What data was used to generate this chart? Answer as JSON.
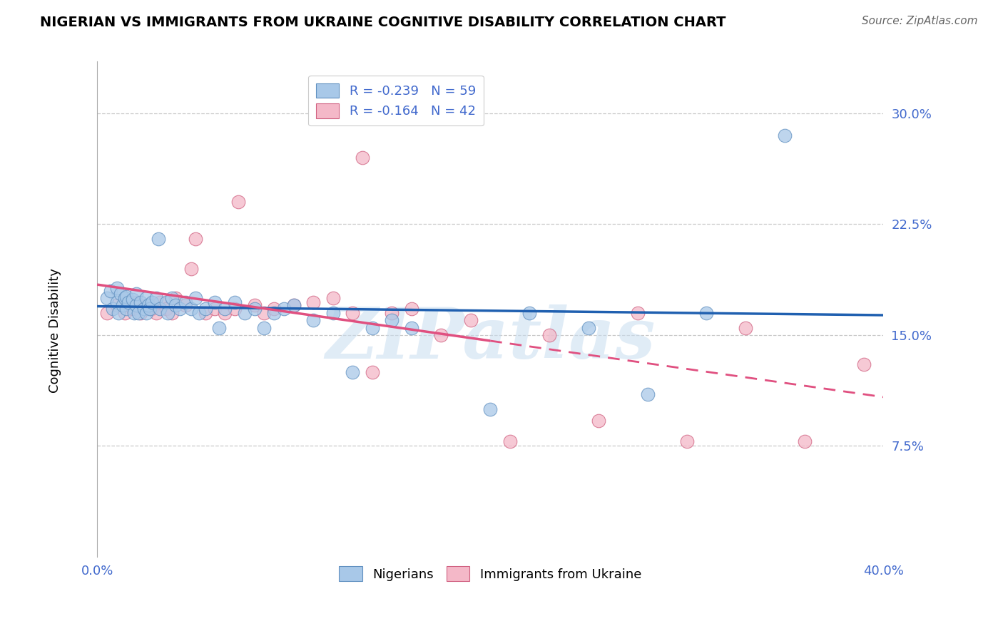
{
  "title": "NIGERIAN VS IMMIGRANTS FROM UKRAINE COGNITIVE DISABILITY CORRELATION CHART",
  "source": "Source: ZipAtlas.com",
  "ylabel": "Cognitive Disability",
  "ytick_labels": [
    "7.5%",
    "15.0%",
    "22.5%",
    "30.0%"
  ],
  "ytick_values": [
    0.075,
    0.15,
    0.225,
    0.3
  ],
  "xlim": [
    0.0,
    0.4
  ],
  "ylim": [
    0.0,
    0.335
  ],
  "legend_r1": "R = -0.239",
  "legend_n1": "N = 59",
  "legend_r2": "R = -0.164",
  "legend_n2": "N = 42",
  "color_blue": "#a8c8e8",
  "color_pink": "#f4b8c8",
  "color_blue_edge": "#6090c0",
  "color_pink_edge": "#d06080",
  "color_blue_line": "#2060b0",
  "color_pink_line": "#e05080",
  "color_accent": "#4169CD",
  "background_color": "#ffffff",
  "watermark": "ZIPatlas",
  "nigerians_x": [
    0.005,
    0.007,
    0.008,
    0.01,
    0.01,
    0.011,
    0.012,
    0.013,
    0.014,
    0.015,
    0.015,
    0.016,
    0.018,
    0.019,
    0.02,
    0.02,
    0.021,
    0.022,
    0.024,
    0.025,
    0.025,
    0.026,
    0.027,
    0.028,
    0.03,
    0.031,
    0.032,
    0.035,
    0.036,
    0.038,
    0.04,
    0.042,
    0.045,
    0.048,
    0.05,
    0.052,
    0.055,
    0.06,
    0.062,
    0.065,
    0.07,
    0.075,
    0.08,
    0.085,
    0.09,
    0.095,
    0.1,
    0.11,
    0.12,
    0.13,
    0.14,
    0.15,
    0.16,
    0.2,
    0.22,
    0.25,
    0.28,
    0.31,
    0.35
  ],
  "nigerians_y": [
    0.175,
    0.18,
    0.168,
    0.172,
    0.182,
    0.165,
    0.178,
    0.17,
    0.175,
    0.168,
    0.176,
    0.172,
    0.174,
    0.165,
    0.17,
    0.178,
    0.165,
    0.172,
    0.168,
    0.175,
    0.165,
    0.17,
    0.168,
    0.172,
    0.175,
    0.215,
    0.168,
    0.172,
    0.165,
    0.175,
    0.17,
    0.168,
    0.172,
    0.168,
    0.175,
    0.165,
    0.168,
    0.172,
    0.155,
    0.168,
    0.172,
    0.165,
    0.168,
    0.155,
    0.165,
    0.168,
    0.17,
    0.16,
    0.165,
    0.125,
    0.155,
    0.16,
    0.155,
    0.1,
    0.165,
    0.155,
    0.11,
    0.165,
    0.285
  ],
  "ukraine_x": [
    0.005,
    0.01,
    0.014,
    0.018,
    0.02,
    0.022,
    0.025,
    0.028,
    0.03,
    0.032,
    0.035,
    0.038,
    0.04,
    0.045,
    0.05,
    0.055,
    0.06,
    0.065,
    0.07,
    0.08,
    0.085,
    0.09,
    0.1,
    0.11,
    0.12,
    0.13,
    0.14,
    0.15,
    0.16,
    0.175,
    0.19,
    0.21,
    0.23,
    0.255,
    0.275,
    0.3,
    0.33,
    0.36,
    0.39,
    0.135,
    0.048,
    0.072
  ],
  "ukraine_y": [
    0.165,
    0.17,
    0.165,
    0.168,
    0.172,
    0.165,
    0.17,
    0.168,
    0.165,
    0.172,
    0.168,
    0.165,
    0.175,
    0.17,
    0.215,
    0.165,
    0.168,
    0.165,
    0.168,
    0.17,
    0.165,
    0.168,
    0.17,
    0.172,
    0.175,
    0.165,
    0.125,
    0.165,
    0.168,
    0.15,
    0.16,
    0.078,
    0.15,
    0.092,
    0.165,
    0.078,
    0.155,
    0.078,
    0.13,
    0.27,
    0.195,
    0.24
  ]
}
